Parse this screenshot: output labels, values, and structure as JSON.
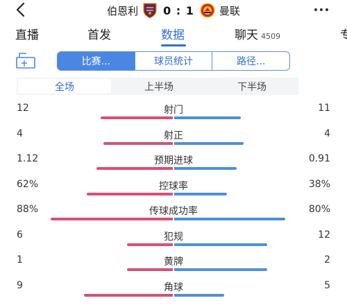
{
  "header": {
    "home_team": "伯恩利",
    "score": "0 : 1",
    "away_team": "曼联"
  },
  "tabs": [
    {
      "label": "直播",
      "count": "",
      "active": false
    },
    {
      "label": "首发",
      "count": "",
      "active": false
    },
    {
      "label": "数据",
      "count": "",
      "active": true
    },
    {
      "label": "聊天",
      "count": "4509",
      "active": false
    },
    {
      "label": "专",
      "count": "",
      "active": false
    }
  ],
  "segments": [
    {
      "label": "比赛...",
      "active": true
    },
    {
      "label": "球员统计",
      "active": false
    },
    {
      "label": "路径...",
      "active": false
    }
  ],
  "periods": [
    {
      "label": "全场",
      "active": true
    },
    {
      "label": "上半场",
      "active": false
    },
    {
      "label": "下半场",
      "active": false
    }
  ],
  "stats": [
    {
      "label": "射门",
      "left": "12",
      "right": "11",
      "left_share": 0.52,
      "right_share": 0.48
    },
    {
      "label": "射正",
      "left": "4",
      "right": "4",
      "left_share": 0.5,
      "right_share": 0.5
    },
    {
      "label": "预期进球",
      "left": "1.12",
      "right": "0.91",
      "left_share": 0.55,
      "right_share": 0.45
    },
    {
      "label": "控球率",
      "left": "62%",
      "right": "38%",
      "left_share": 0.62,
      "right_share": 0.38
    },
    {
      "label": "传球成功率",
      "left": "88%",
      "right": "80%",
      "left_share": 0.88,
      "right_share": 0.8
    },
    {
      "label": "犯规",
      "left": "6",
      "right": "12",
      "left_share": 0.33,
      "right_share": 0.67
    },
    {
      "label": "黄牌",
      "left": "1",
      "right": "2",
      "left_share": 0.33,
      "right_share": 0.67
    },
    {
      "label": "角球",
      "left": "9",
      "right": "5",
      "left_share": 0.64,
      "right_share": 0.36
    }
  ],
  "colors": {
    "accent": "#2f6fd6",
    "home_bar": "#d94e74",
    "away_bar": "#4a90e2"
  }
}
